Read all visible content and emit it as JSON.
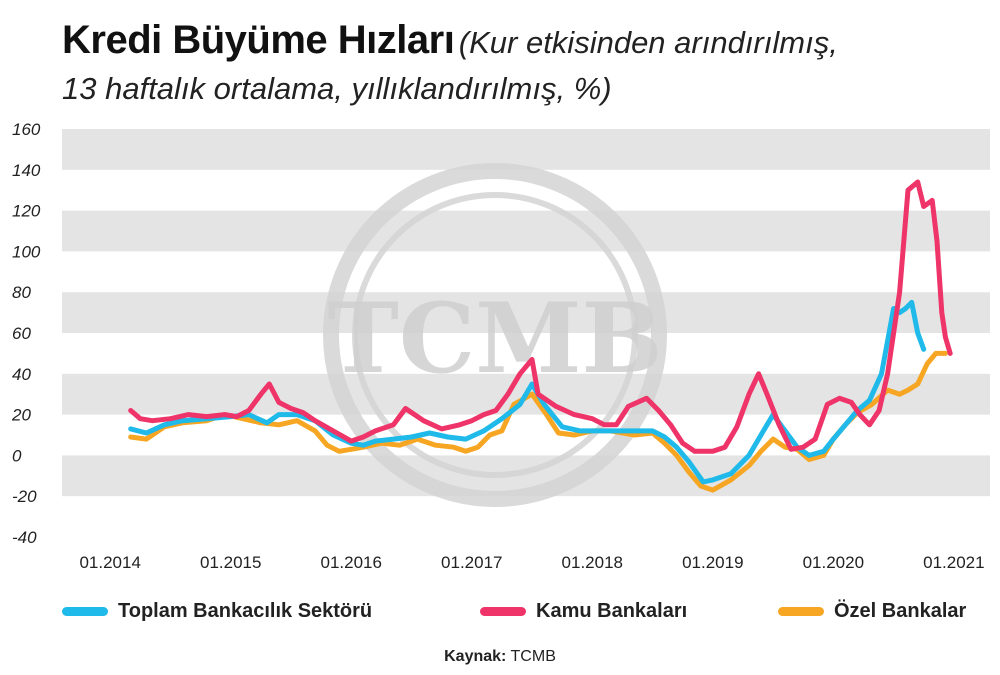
{
  "header": {
    "title": "Kredi Büyüme Hızları",
    "subtitle_line1": "(Kur etkisinden arındırılmış,",
    "subtitle_line2": "13 haftalık ortalama, yıllıklandırılmış, %)"
  },
  "source": {
    "label": "Kaynak:",
    "value": "TCMB"
  },
  "watermark": "TCMB",
  "colors": {
    "toplam": "#1fb9ea",
    "kamu": "#ee3468",
    "ozel": "#f6a623",
    "band": "#e4e4e4"
  },
  "chart_data": {
    "type": "line",
    "title": "Kredi Büyüme Hızları",
    "xlabel": "",
    "ylabel": "",
    "ylim": [
      -40,
      160
    ],
    "yticks": [
      "160",
      "140",
      "120",
      "100",
      "80",
      "60",
      "40",
      "20",
      "0",
      "-20",
      "-40"
    ],
    "xticks": [
      "01.2014",
      "01.2015",
      "01.2016",
      "01.2017",
      "01.2018",
      "01.2019",
      "01.2020",
      "01.2021"
    ],
    "xlim": [
      2013.6,
      2021.3
    ],
    "grid": "horizontal bands",
    "legend_position": "bottom",
    "series": [
      {
        "name": "Toplam Bankacılık Sektörü",
        "color": "#1fb9ea",
        "points": [
          [
            2014.17,
            13
          ],
          [
            2014.3,
            11
          ],
          [
            2014.45,
            15
          ],
          [
            2014.6,
            17
          ],
          [
            2014.8,
            18
          ],
          [
            2015.0,
            19
          ],
          [
            2015.15,
            20
          ],
          [
            2015.3,
            16
          ],
          [
            2015.4,
            20
          ],
          [
            2015.55,
            20
          ],
          [
            2015.7,
            17
          ],
          [
            2015.85,
            10
          ],
          [
            2016.0,
            6
          ],
          [
            2016.1,
            5
          ],
          [
            2016.2,
            7
          ],
          [
            2016.35,
            8
          ],
          [
            2016.5,
            9
          ],
          [
            2016.65,
            11
          ],
          [
            2016.8,
            9
          ],
          [
            2016.95,
            8
          ],
          [
            2017.1,
            12
          ],
          [
            2017.25,
            18
          ],
          [
            2017.4,
            25
          ],
          [
            2017.5,
            35
          ],
          [
            2017.6,
            25
          ],
          [
            2017.75,
            14
          ],
          [
            2017.9,
            12
          ],
          [
            2018.1,
            12
          ],
          [
            2018.3,
            12
          ],
          [
            2018.5,
            12
          ],
          [
            2018.6,
            9
          ],
          [
            2018.7,
            4
          ],
          [
            2018.8,
            -3
          ],
          [
            2018.92,
            -13
          ],
          [
            2019.0,
            -12
          ],
          [
            2019.15,
            -9
          ],
          [
            2019.3,
            0
          ],
          [
            2019.4,
            10
          ],
          [
            2019.5,
            20
          ],
          [
            2019.6,
            12
          ],
          [
            2019.7,
            4
          ],
          [
            2019.8,
            0
          ],
          [
            2019.92,
            2
          ],
          [
            2020.0,
            8
          ],
          [
            2020.1,
            15
          ],
          [
            2020.2,
            22
          ],
          [
            2020.3,
            27
          ],
          [
            2020.4,
            40
          ],
          [
            2020.5,
            72
          ],
          [
            2020.55,
            70
          ],
          [
            2020.6,
            72
          ],
          [
            2020.65,
            75
          ],
          [
            2020.7,
            60
          ],
          [
            2020.75,
            52
          ]
        ]
      },
      {
        "name": "Kamu Bankaları",
        "color": "#ee3468",
        "points": [
          [
            2014.17,
            22
          ],
          [
            2014.25,
            18
          ],
          [
            2014.35,
            17
          ],
          [
            2014.5,
            18
          ],
          [
            2014.65,
            20
          ],
          [
            2014.8,
            19
          ],
          [
            2014.95,
            20
          ],
          [
            2015.05,
            19
          ],
          [
            2015.15,
            22
          ],
          [
            2015.25,
            30
          ],
          [
            2015.32,
            35
          ],
          [
            2015.4,
            26
          ],
          [
            2015.5,
            23
          ],
          [
            2015.6,
            21
          ],
          [
            2015.7,
            17
          ],
          [
            2015.85,
            12
          ],
          [
            2016.0,
            7
          ],
          [
            2016.1,
            9
          ],
          [
            2016.2,
            12
          ],
          [
            2016.35,
            15
          ],
          [
            2016.45,
            23
          ],
          [
            2016.6,
            17
          ],
          [
            2016.75,
            13
          ],
          [
            2016.9,
            15
          ],
          [
            2017.0,
            17
          ],
          [
            2017.1,
            20
          ],
          [
            2017.2,
            22
          ],
          [
            2017.3,
            30
          ],
          [
            2017.4,
            40
          ],
          [
            2017.5,
            47
          ],
          [
            2017.55,
            30
          ],
          [
            2017.7,
            24
          ],
          [
            2017.85,
            20
          ],
          [
            2018.0,
            18
          ],
          [
            2018.1,
            15
          ],
          [
            2018.2,
            15
          ],
          [
            2018.3,
            24
          ],
          [
            2018.45,
            28
          ],
          [
            2018.55,
            22
          ],
          [
            2018.65,
            15
          ],
          [
            2018.75,
            6
          ],
          [
            2018.85,
            2
          ],
          [
            2019.0,
            2
          ],
          [
            2019.1,
            4
          ],
          [
            2019.2,
            14
          ],
          [
            2019.3,
            30
          ],
          [
            2019.38,
            40
          ],
          [
            2019.45,
            30
          ],
          [
            2019.55,
            15
          ],
          [
            2019.65,
            3
          ],
          [
            2019.75,
            4
          ],
          [
            2019.85,
            8
          ],
          [
            2019.95,
            25
          ],
          [
            2020.05,
            28
          ],
          [
            2020.15,
            26
          ],
          [
            2020.22,
            20
          ],
          [
            2020.3,
            15
          ],
          [
            2020.38,
            22
          ],
          [
            2020.45,
            40
          ],
          [
            2020.5,
            60
          ],
          [
            2020.55,
            80
          ],
          [
            2020.62,
            130
          ],
          [
            2020.7,
            134
          ],
          [
            2020.75,
            122
          ],
          [
            2020.82,
            125
          ],
          [
            2020.86,
            105
          ],
          [
            2020.9,
            70
          ],
          [
            2020.93,
            58
          ],
          [
            2020.97,
            50
          ]
        ]
      },
      {
        "name": "Özel Bankalar",
        "color": "#f6a623",
        "points": [
          [
            2014.17,
            9
          ],
          [
            2014.3,
            8
          ],
          [
            2014.45,
            14
          ],
          [
            2014.6,
            16
          ],
          [
            2014.8,
            17
          ],
          [
            2014.95,
            20
          ],
          [
            2015.1,
            18
          ],
          [
            2015.25,
            16
          ],
          [
            2015.4,
            15
          ],
          [
            2015.55,
            17
          ],
          [
            2015.7,
            12
          ],
          [
            2015.8,
            5
          ],
          [
            2015.9,
            2
          ],
          [
            2016.0,
            3
          ],
          [
            2016.1,
            4
          ],
          [
            2016.25,
            6
          ],
          [
            2016.4,
            5
          ],
          [
            2016.55,
            8
          ],
          [
            2016.7,
            5
          ],
          [
            2016.85,
            4
          ],
          [
            2016.95,
            2
          ],
          [
            2017.05,
            4
          ],
          [
            2017.15,
            10
          ],
          [
            2017.25,
            12
          ],
          [
            2017.35,
            25
          ],
          [
            2017.5,
            30
          ],
          [
            2017.62,
            20
          ],
          [
            2017.72,
            11
          ],
          [
            2017.85,
            10
          ],
          [
            2018.0,
            12
          ],
          [
            2018.15,
            12
          ],
          [
            2018.35,
            10
          ],
          [
            2018.5,
            11
          ],
          [
            2018.6,
            6
          ],
          [
            2018.7,
            0
          ],
          [
            2018.8,
            -8
          ],
          [
            2018.9,
            -15
          ],
          [
            2019.0,
            -17
          ],
          [
            2019.15,
            -12
          ],
          [
            2019.3,
            -5
          ],
          [
            2019.4,
            2
          ],
          [
            2019.5,
            8
          ],
          [
            2019.6,
            4
          ],
          [
            2019.7,
            3
          ],
          [
            2019.8,
            -2
          ],
          [
            2019.92,
            0
          ],
          [
            2020.0,
            8
          ],
          [
            2020.1,
            15
          ],
          [
            2020.2,
            21
          ],
          [
            2020.32,
            25
          ],
          [
            2020.45,
            32
          ],
          [
            2020.55,
            30
          ],
          [
            2020.62,
            32
          ],
          [
            2020.7,
            35
          ],
          [
            2020.78,
            45
          ],
          [
            2020.85,
            50
          ],
          [
            2020.93,
            50
          ]
        ]
      }
    ]
  }
}
